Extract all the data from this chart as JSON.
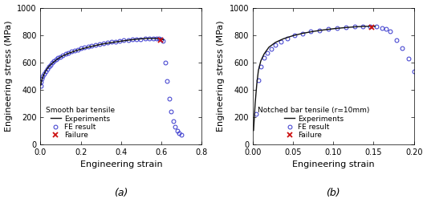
{
  "plot_a": {
    "title": "Smooth bar tensile",
    "xlabel": "Engineering strain",
    "ylabel": "Engineering stress (MPa)",
    "xlim": [
      0.0,
      0.8
    ],
    "ylim": [
      0,
      1000
    ],
    "xticks": [
      0.0,
      0.2,
      0.4,
      0.6,
      0.8
    ],
    "yticks": [
      0,
      200,
      400,
      600,
      800,
      1000
    ],
    "label": "(a)",
    "fe_circles": [
      [
        0.001,
        430
      ],
      [
        0.004,
        455
      ],
      [
        0.008,
        478
      ],
      [
        0.012,
        495
      ],
      [
        0.018,
        515
      ],
      [
        0.025,
        535
      ],
      [
        0.032,
        552
      ],
      [
        0.04,
        567
      ],
      [
        0.048,
        581
      ],
      [
        0.057,
        595
      ],
      [
        0.066,
        607
      ],
      [
        0.076,
        619
      ],
      [
        0.087,
        630
      ],
      [
        0.099,
        641
      ],
      [
        0.111,
        650
      ],
      [
        0.124,
        660
      ],
      [
        0.138,
        669
      ],
      [
        0.153,
        678
      ],
      [
        0.168,
        686
      ],
      [
        0.184,
        694
      ],
      [
        0.201,
        701
      ],
      [
        0.218,
        709
      ],
      [
        0.236,
        715
      ],
      [
        0.254,
        721
      ],
      [
        0.273,
        727
      ],
      [
        0.292,
        733
      ],
      [
        0.312,
        738
      ],
      [
        0.332,
        743
      ],
      [
        0.352,
        748
      ],
      [
        0.372,
        752
      ],
      [
        0.393,
        756
      ],
      [
        0.414,
        760
      ],
      [
        0.435,
        763
      ],
      [
        0.456,
        766
      ],
      [
        0.477,
        769
      ],
      [
        0.498,
        771
      ],
      [
        0.519,
        773
      ],
      [
        0.54,
        774
      ],
      [
        0.56,
        775
      ],
      [
        0.575,
        775
      ],
      [
        0.588,
        773
      ],
      [
        0.598,
        769
      ],
      [
        0.608,
        757
      ],
      [
        0.618,
        600
      ],
      [
        0.628,
        465
      ],
      [
        0.638,
        335
      ],
      [
        0.648,
        240
      ],
      [
        0.658,
        170
      ],
      [
        0.668,
        130
      ],
      [
        0.678,
        100
      ],
      [
        0.688,
        83
      ],
      [
        0.698,
        70
      ]
    ],
    "fe_line": [
      [
        0.001,
        430
      ],
      [
        0.004,
        455
      ],
      [
        0.008,
        478
      ],
      [
        0.015,
        505
      ],
      [
        0.025,
        535
      ],
      [
        0.04,
        567
      ],
      [
        0.06,
        595
      ],
      [
        0.08,
        619
      ],
      [
        0.105,
        643
      ],
      [
        0.135,
        663
      ],
      [
        0.17,
        682
      ],
      [
        0.21,
        700
      ],
      [
        0.255,
        717
      ],
      [
        0.305,
        733
      ],
      [
        0.36,
        746
      ],
      [
        0.415,
        758
      ],
      [
        0.47,
        768
      ],
      [
        0.52,
        774
      ],
      [
        0.56,
        775
      ],
      [
        0.585,
        774
      ],
      [
        0.6,
        771
      ],
      [
        0.61,
        765
      ]
    ],
    "failure_x": [
      0.597
    ],
    "failure_y": [
      762
    ]
  },
  "plot_b": {
    "title": "Notched bar tensile (r=10mm)",
    "xlabel": "Engineering strain",
    "ylabel": "Engineering stress (MPa)",
    "xlim": [
      0.0,
      0.2
    ],
    "ylim": [
      0,
      1000
    ],
    "xticks": [
      0.0,
      0.05,
      0.1,
      0.15,
      0.2
    ],
    "yticks": [
      0,
      200,
      400,
      600,
      800,
      1000
    ],
    "label": "(b)",
    "fe_circles": [
      [
        0.004,
        220
      ],
      [
        0.007,
        470
      ],
      [
        0.01,
        570
      ],
      [
        0.014,
        630
      ],
      [
        0.018,
        670
      ],
      [
        0.023,
        700
      ],
      [
        0.028,
        725
      ],
      [
        0.035,
        752
      ],
      [
        0.043,
        775
      ],
      [
        0.052,
        795
      ],
      [
        0.062,
        812
      ],
      [
        0.072,
        824
      ],
      [
        0.083,
        835
      ],
      [
        0.094,
        844
      ],
      [
        0.105,
        851
      ],
      [
        0.116,
        857
      ],
      [
        0.127,
        862
      ],
      [
        0.137,
        865
      ],
      [
        0.146,
        865
      ],
      [
        0.153,
        862
      ],
      [
        0.16,
        853
      ],
      [
        0.165,
        843
      ],
      [
        0.17,
        828
      ],
      [
        0.178,
        762
      ],
      [
        0.185,
        706
      ],
      [
        0.193,
        627
      ],
      [
        0.2,
        535
      ]
    ],
    "fe_line": [
      [
        0.001,
        100
      ],
      [
        0.003,
        300
      ],
      [
        0.005,
        440
      ],
      [
        0.007,
        540
      ],
      [
        0.01,
        610
      ],
      [
        0.014,
        660
      ],
      [
        0.02,
        710
      ],
      [
        0.028,
        745
      ],
      [
        0.038,
        772
      ],
      [
        0.05,
        795
      ],
      [
        0.062,
        812
      ],
      [
        0.075,
        826
      ],
      [
        0.088,
        837
      ],
      [
        0.102,
        847
      ],
      [
        0.115,
        854
      ],
      [
        0.128,
        860
      ],
      [
        0.138,
        863
      ],
      [
        0.146,
        864
      ],
      [
        0.152,
        863
      ]
    ],
    "failure_x": [
      0.148
    ],
    "failure_y": [
      855
    ]
  },
  "circle_color": "#3636cc",
  "line_color": "#111111",
  "failure_color": "#cc1111",
  "legend_fontsize": 6.5,
  "tick_fontsize": 7,
  "axis_label_fontsize": 8,
  "sub_label_fontsize": 9,
  "figwidth": 5.32,
  "figheight": 2.63,
  "dpi": 100
}
